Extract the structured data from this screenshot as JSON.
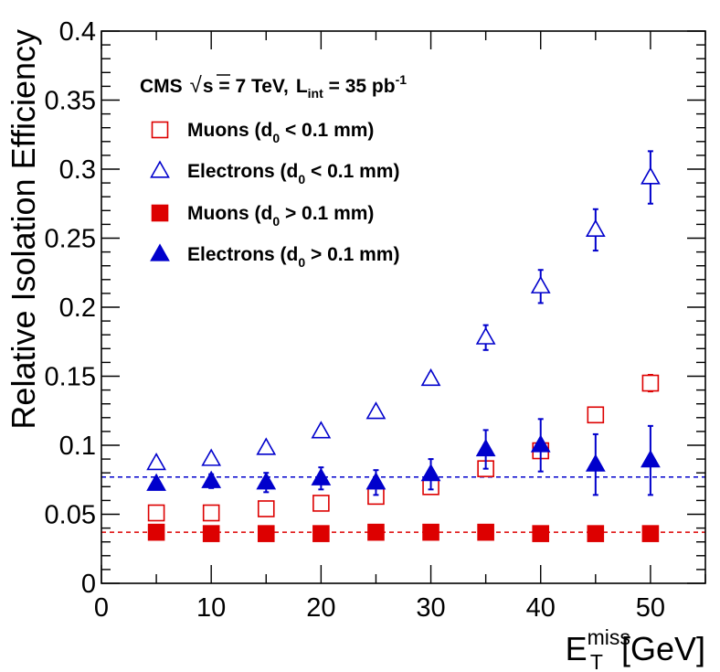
{
  "chart_data": {
    "type": "scatter",
    "title": "",
    "ylabel": "Relative Isolation Efficiency",
    "xlabel_main": "E",
    "xlabel_sub": "T",
    "xlabel_sup": "miss",
    "xlabel_unit": " [GeV]",
    "xlim": [
      0,
      55
    ],
    "ylim": [
      0,
      0.4
    ],
    "x_ticks": [
      0,
      10,
      20,
      30,
      40,
      50
    ],
    "x_tick_labels": [
      "0",
      "10",
      "20",
      "30",
      "40",
      "50"
    ],
    "y_ticks": [
      0,
      0.05,
      0.1,
      0.15,
      0.2,
      0.25,
      0.3,
      0.35,
      0.4
    ],
    "y_tick_labels": [
      "0",
      "0.05",
      "0.1",
      "0.15",
      "0.2",
      "0.25",
      "0.3",
      "0.35",
      "0.4"
    ],
    "grid": false,
    "legend_position": "top-left",
    "header": {
      "experiment": "CMS",
      "sqrt_symbol": "√",
      "energy": "s = 7 TeV,",
      "lumi_main": "L",
      "lumi_sub": "int",
      "lumi_value": " = 35 pb",
      "lumi_sup": "-1"
    },
    "reference_lines": [
      {
        "y": 0.077,
        "color": "#0000cc",
        "style": "dashed"
      },
      {
        "y": 0.037,
        "color": "#dd0000",
        "style": "dashed"
      }
    ],
    "series": [
      {
        "name_pre": "Muons (d",
        "name_sub": "0",
        "name_post": " < 0.1 mm)",
        "marker": "square-open",
        "color": "#dd0000",
        "x": [
          5,
          10,
          15,
          20,
          25,
          30,
          35,
          40,
          45,
          50
        ],
        "y": [
          0.051,
          0.051,
          0.054,
          0.058,
          0.063,
          0.07,
          0.083,
          0.096,
          0.122,
          0.145
        ],
        "err": [
          0.002,
          0.002,
          0.002,
          0.002,
          0.002,
          0.002,
          0.003,
          0.004,
          0.004,
          0.006
        ]
      },
      {
        "name_pre": "Electrons (d",
        "name_sub": "0",
        "name_post": " < 0.1 mm)",
        "marker": "triangle-open",
        "color": "#0000cc",
        "x": [
          5,
          10,
          15,
          20,
          25,
          30,
          35,
          40,
          45,
          50
        ],
        "y": [
          0.087,
          0.09,
          0.098,
          0.11,
          0.124,
          0.148,
          0.178,
          0.215,
          0.256,
          0.294
        ],
        "err": [
          0.002,
          0.002,
          0.003,
          0.003,
          0.003,
          0.004,
          0.009,
          0.012,
          0.015,
          0.019
        ]
      },
      {
        "name_pre": "Muons (d",
        "name_sub": "0",
        "name_post": " > 0.1 mm)",
        "marker": "square-filled",
        "color": "#dd0000",
        "x": [
          5,
          10,
          15,
          20,
          25,
          30,
          35,
          40,
          45,
          50
        ],
        "y": [
          0.037,
          0.036,
          0.036,
          0.036,
          0.037,
          0.037,
          0.037,
          0.036,
          0.036,
          0.036
        ],
        "err": [
          0.001,
          0.001,
          0.001,
          0.001,
          0.001,
          0.001,
          0.001,
          0.001,
          0.001,
          0.001
        ]
      },
      {
        "name_pre": "Electrons (d",
        "name_sub": "0",
        "name_post": " > 0.1 mm)",
        "marker": "triangle-filled",
        "color": "#0000cc",
        "x": [
          5,
          10,
          15,
          20,
          25,
          30,
          35,
          40,
          45,
          50
        ],
        "y": [
          0.072,
          0.074,
          0.073,
          0.076,
          0.073,
          0.079,
          0.097,
          0.1,
          0.086,
          0.089
        ],
        "err": [
          0.004,
          0.005,
          0.007,
          0.008,
          0.009,
          0.011,
          0.014,
          0.019,
          0.022,
          0.025
        ]
      }
    ]
  }
}
